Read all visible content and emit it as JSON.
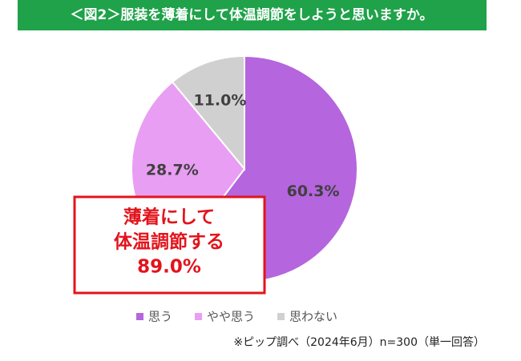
{
  "chart_data": {
    "type": "pie",
    "title": "＜図2＞服装を薄着にして体温調節をしようと思いますか。",
    "categories": [
      "思う",
      "やや思う",
      "思わない"
    ],
    "values": [
      60.3,
      28.7,
      11.0
    ],
    "value_labels": [
      "60.3%",
      "28.7%",
      "11.0%"
    ],
    "colors": [
      "#b565dd",
      "#e89ef2",
      "#d0d0d0"
    ],
    "annotation": [
      "薄着にして",
      "体温調節する",
      "89.0%"
    ],
    "source": "※ピップ調べ（2024年6月）n=300（単一回答）"
  }
}
